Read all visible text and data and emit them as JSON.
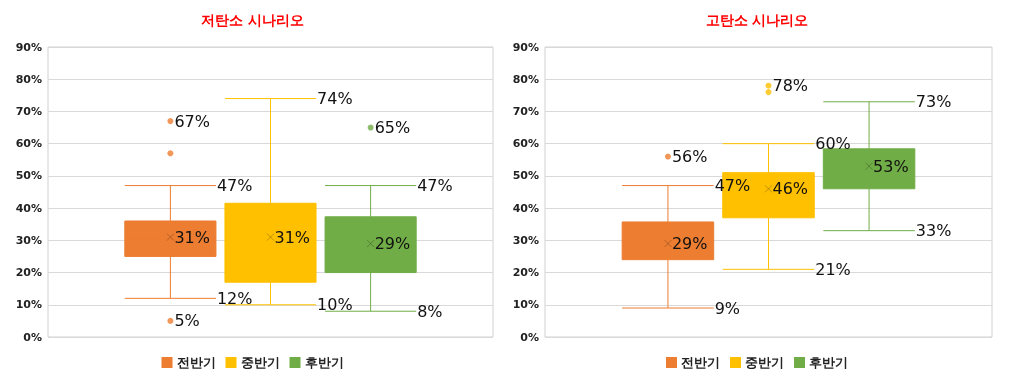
{
  "chart_data": [
    {
      "type": "box",
      "title": "저탄소 시나리오",
      "categories": [
        null
      ],
      "series": [
        {
          "name": "전반기",
          "color": "#ed7d31",
          "boxes": [
            {
              "low": 12,
              "q1": 25,
              "median": 30.4,
              "q3": 36,
              "high": 47,
              "mean": 31,
              "outliers": [
                67,
                57,
                5
              ]
            }
          ]
        },
        {
          "name": "중반기",
          "color": "#ffc000",
          "boxes": [
            {
              "low": 10,
              "q1": 17,
              "median": 28,
              "q3": 41.5,
              "high": 74,
              "mean": 31
            }
          ]
        },
        {
          "name": "후반기",
          "color": "#70ad47",
          "boxes": [
            {
              "low": 8,
              "q1": 20,
              "median": 27.3,
              "q3": 37.3,
              "high": 47,
              "mean": 29,
              "outliers": [
                65
              ]
            }
          ]
        }
      ],
      "ylim": [
        0,
        90
      ],
      "yticks": [
        {
          "value": 0,
          "label": "0%"
        },
        {
          "value": 10,
          "label": "10%"
        },
        {
          "value": 20,
          "label": "20%"
        },
        {
          "value": 30,
          "label": "30%"
        },
        {
          "value": 40,
          "label": "40%"
        },
        {
          "value": 50,
          "label": "50%"
        },
        {
          "value": 60,
          "label": "60%"
        },
        {
          "value": 70,
          "label": "70%"
        },
        {
          "value": 80,
          "label": "80%"
        },
        {
          "value": 90,
          "label": "90%"
        }
      ],
      "grid": "y",
      "legend": "bottom",
      "annotations": [
        "67%",
        "47%",
        "31%",
        "12%",
        "5%",
        "74%",
        "31%",
        "10%",
        "65%",
        "47%",
        "29%",
        "8%"
      ]
    },
    {
      "type": "box",
      "title": "고탄소 시나리오",
      "categories": [
        null
      ],
      "series": [
        {
          "name": "전반기",
          "color": "#ed7d31",
          "boxes": [
            {
              "low": 9,
              "q1": 24,
              "median": 29.4,
              "q3": 35.7,
              "high": 47,
              "mean": 29,
              "outliers": [
                56
              ]
            }
          ]
        },
        {
          "name": "중반기",
          "color": "#ffc000",
          "boxes": [
            {
              "low": 21,
              "q1": 37,
              "median": 44,
              "q3": 51,
              "high": 60,
              "mean": 46,
              "outliers": [
                78,
                76
              ]
            }
          ]
        },
        {
          "name": "후반기",
          "color": "#70ad47",
          "boxes": [
            {
              "low": 33,
              "q1": 46,
              "median": 53.5,
              "q3": 58.4,
              "high": 73,
              "mean": 53
            }
          ]
        }
      ],
      "ylim": [
        0,
        90
      ],
      "yticks": [
        {
          "value": 0,
          "label": "0%"
        },
        {
          "value": 10,
          "label": "10%"
        },
        {
          "value": 20,
          "label": "20%"
        },
        {
          "value": 30,
          "label": "30%"
        },
        {
          "value": 40,
          "label": "40%"
        },
        {
          "value": 50,
          "label": "50%"
        },
        {
          "value": 60,
          "label": "60%"
        },
        {
          "value": 70,
          "label": "70%"
        },
        {
          "value": 80,
          "label": "80%"
        },
        {
          "value": 90,
          "label": "90%"
        }
      ],
      "grid": "y",
      "legend": "bottom",
      "annotations": [
        "56%",
        "47%",
        "29%",
        "9%",
        "78%",
        "60%",
        "46%",
        "21%",
        "73%",
        "53%",
        "33%"
      ]
    }
  ]
}
